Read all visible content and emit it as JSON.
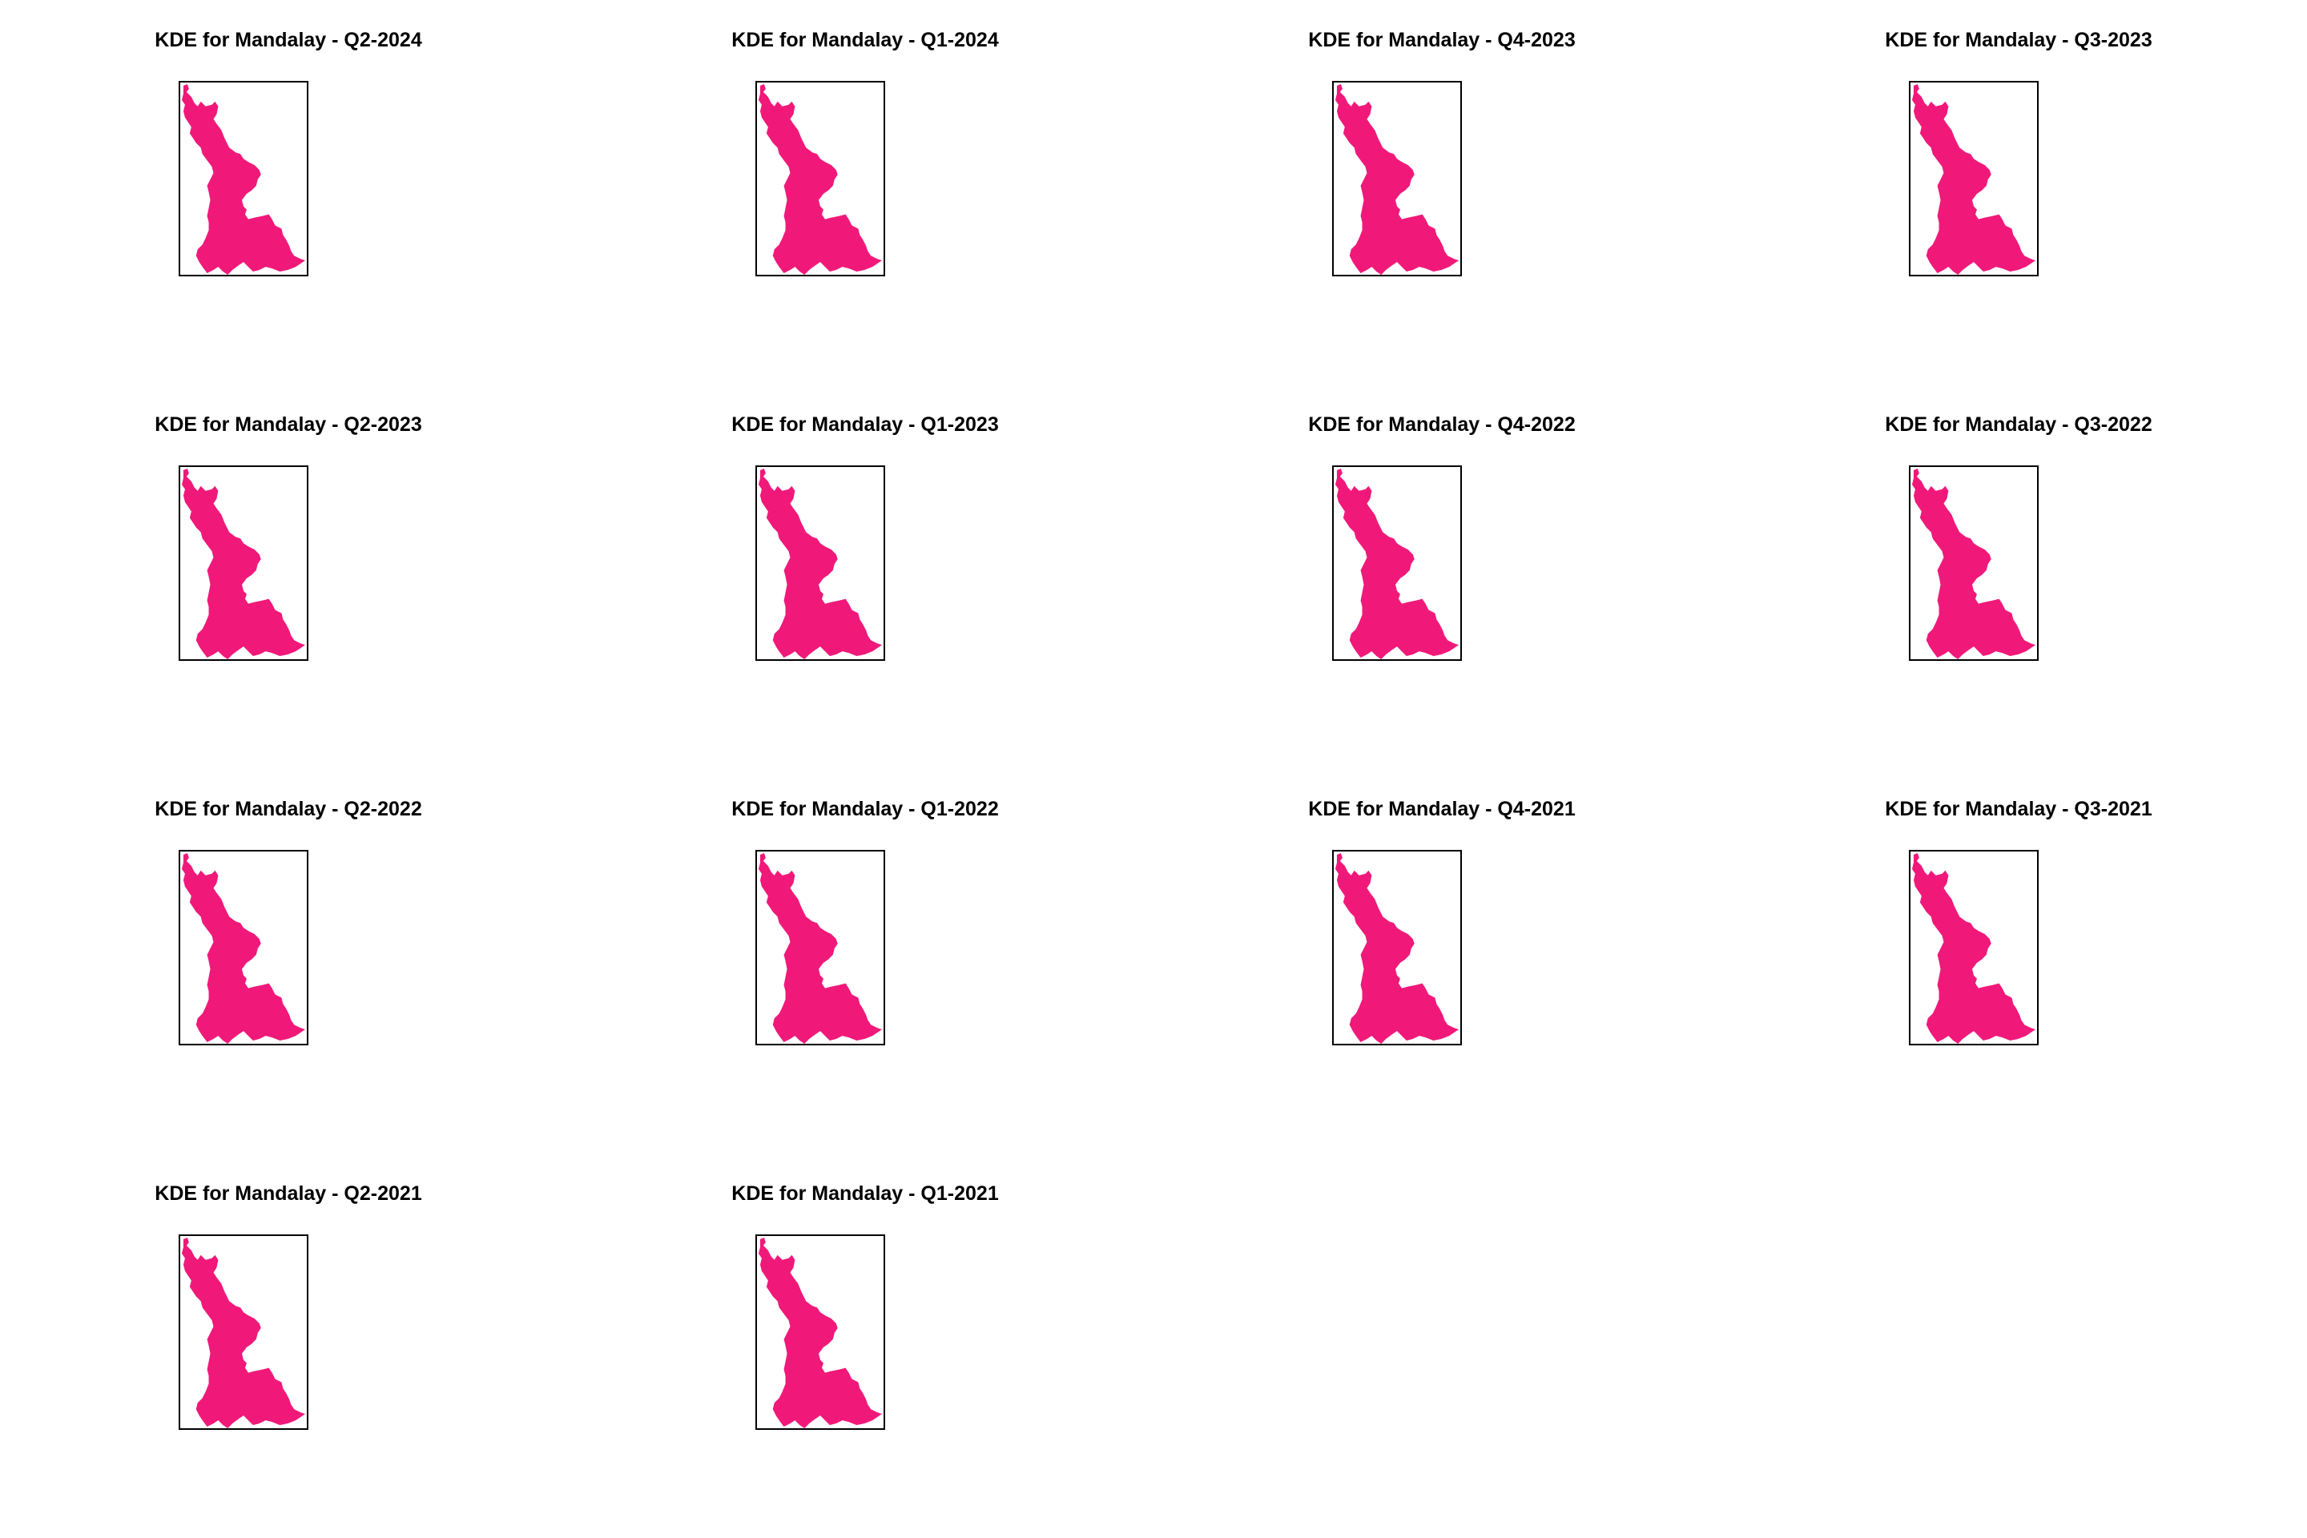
{
  "fill_color": "#F0197A",
  "border_color": "#000000",
  "panels": [
    {
      "title": "KDE for Mandalay - Q2-2024"
    },
    {
      "title": "KDE for Mandalay - Q1-2024"
    },
    {
      "title": "KDE for Mandalay - Q4-2023"
    },
    {
      "title": "KDE for Mandalay - Q3-2023"
    },
    {
      "title": "KDE for Mandalay - Q2-2023"
    },
    {
      "title": "KDE for Mandalay - Q1-2023"
    },
    {
      "title": "KDE for Mandalay - Q4-2022"
    },
    {
      "title": "KDE for Mandalay - Q3-2022"
    },
    {
      "title": "KDE for Mandalay - Q2-2022"
    },
    {
      "title": "KDE for Mandalay - Q1-2022"
    },
    {
      "title": "KDE for Mandalay - Q4-2021"
    },
    {
      "title": "KDE for Mandalay - Q3-2021"
    },
    {
      "title": "KDE for Mandalay - Q2-2021"
    },
    {
      "title": "KDE for Mandalay - Q1-2021"
    }
  ]
}
